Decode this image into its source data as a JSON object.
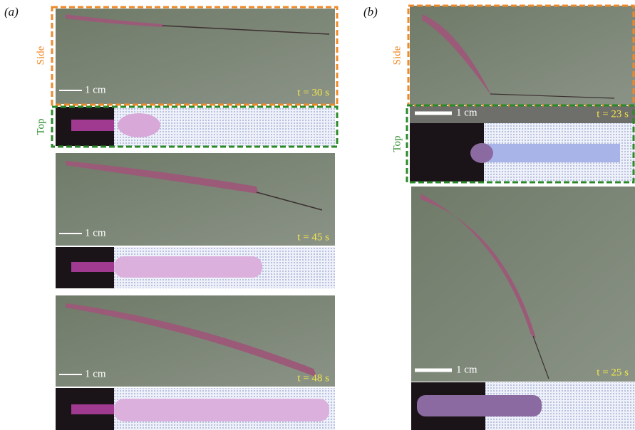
{
  "panels": [
    {
      "label": "(a)",
      "side_label": "Side",
      "top_label": "Top",
      "frames": [
        {
          "scale": "1 cm",
          "time": "t = 30 s"
        },
        {
          "scale": "1 cm",
          "time": "t = 45 s"
        },
        {
          "scale": "1 cm",
          "time": "t = 48 s"
        }
      ]
    },
    {
      "label": "(b)",
      "side_label": "Side",
      "top_label": "Top",
      "frames": [
        {
          "scale": "1 cm",
          "time": "t = 23 s"
        },
        {
          "scale": "1 cm",
          "time": "t = 25 s"
        }
      ]
    }
  ]
}
